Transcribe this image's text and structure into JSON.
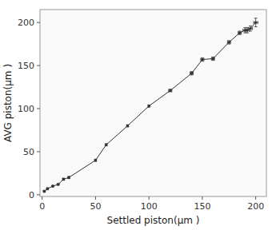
{
  "chart_data": {
    "type": "line",
    "marker": "square",
    "line_style": "solid",
    "color": "#333333",
    "grid": false,
    "xlabel": "Settled piston(μm )",
    "ylabel": "AVG piston(μm )",
    "x": [
      2,
      5,
      10,
      15,
      20,
      25,
      50,
      60,
      80,
      100,
      120,
      140,
      150,
      160,
      175,
      185,
      190,
      192,
      195,
      200
    ],
    "values": [
      4,
      7,
      10,
      12,
      18,
      20,
      40,
      58,
      80,
      103,
      121,
      141,
      157,
      158,
      177,
      188,
      191,
      191,
      193,
      200
    ],
    "xerr": [
      0.5,
      0.5,
      0.5,
      0.5,
      0.5,
      0.5,
      0.5,
      0.5,
      0.5,
      0.5,
      1.5,
      1.5,
      1.5,
      1.5,
      1.5,
      1.5,
      2,
      2,
      2,
      2
    ],
    "yerr": [
      0.5,
      0.5,
      0.5,
      0.5,
      1,
      1,
      1,
      1,
      1,
      1,
      1.5,
      2,
      2,
      2,
      2,
      2,
      3,
      3,
      3,
      5
    ],
    "xlim": [
      -2,
      210
    ],
    "ylim": [
      -2,
      215
    ],
    "xticks": [
      0,
      50,
      100,
      150,
      200
    ],
    "yticks": [
      0,
      50,
      100,
      150,
      200
    ]
  }
}
